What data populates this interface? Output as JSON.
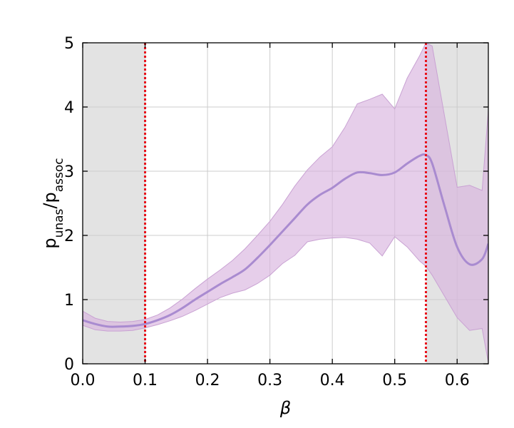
{
  "chart_data": {
    "type": "line",
    "title": "",
    "xlabel": "β",
    "ylabel": {
      "base1": "p",
      "sub1": "unas",
      "slash": "/",
      "base2": "p",
      "sub2": "assoc"
    },
    "xlim": [
      0.0,
      0.65
    ],
    "ylim": [
      0,
      5
    ],
    "xticks": [
      0.0,
      0.1,
      0.2,
      0.3,
      0.4,
      0.5,
      0.6
    ],
    "xtick_labels": [
      "0.0",
      "0.1",
      "0.2",
      "0.3",
      "0.4",
      "0.5",
      "0.6"
    ],
    "yticks": [
      0,
      1,
      2,
      3,
      4,
      5
    ],
    "ytick_labels": [
      "0",
      "1",
      "2",
      "3",
      "4",
      "5"
    ],
    "grid": true,
    "colors": {
      "line": "#a98bd0",
      "band": "#d9b3de",
      "band_edge": "#c9a2d3",
      "shaded_region": "#e3e3e3",
      "vline": "#e8101a",
      "grid": "#cccccc"
    },
    "shaded_regions": [
      {
        "x0": 0.0,
        "x1": 0.1
      },
      {
        "x0": 0.55,
        "x1": 0.65
      }
    ],
    "vlines": [
      0.1,
      0.55
    ],
    "series": [
      {
        "x": [
          0.0,
          0.02,
          0.04,
          0.06,
          0.08,
          0.1,
          0.12,
          0.14,
          0.16,
          0.18,
          0.2,
          0.22,
          0.24,
          0.26,
          0.28,
          0.3,
          0.32,
          0.34,
          0.36,
          0.38,
          0.4,
          0.42,
          0.44,
          0.46,
          0.48,
          0.5,
          0.52,
          0.54,
          0.55,
          0.56,
          0.58,
          0.6,
          0.62,
          0.64,
          0.65
        ],
        "y": [
          0.68,
          0.62,
          0.58,
          0.58,
          0.59,
          0.62,
          0.68,
          0.76,
          0.87,
          1.0,
          1.12,
          1.24,
          1.35,
          1.47,
          1.65,
          1.85,
          2.06,
          2.27,
          2.48,
          2.63,
          2.74,
          2.88,
          2.98,
          2.97,
          2.94,
          2.98,
          3.12,
          3.24,
          3.25,
          3.12,
          2.45,
          1.82,
          1.55,
          1.63,
          1.87
        ],
        "lower": [
          0.6,
          0.53,
          0.51,
          0.51,
          0.52,
          0.56,
          0.61,
          0.67,
          0.74,
          0.83,
          0.93,
          1.03,
          1.1,
          1.15,
          1.25,
          1.38,
          1.56,
          1.69,
          1.9,
          1.94,
          1.96,
          1.97,
          1.94,
          1.88,
          1.68,
          1.98,
          1.82,
          1.6,
          1.52,
          1.38,
          1.05,
          0.72,
          0.52,
          0.55,
          0.02
        ],
        "upper": [
          0.82,
          0.71,
          0.66,
          0.65,
          0.66,
          0.69,
          0.76,
          0.87,
          1.01,
          1.17,
          1.32,
          1.46,
          1.61,
          1.79,
          2.0,
          2.22,
          2.48,
          2.77,
          3.02,
          3.22,
          3.38,
          3.68,
          4.05,
          4.12,
          4.2,
          3.97,
          4.45,
          4.8,
          5.0,
          4.95,
          3.85,
          2.75,
          2.78,
          2.7,
          3.95
        ]
      }
    ]
  }
}
